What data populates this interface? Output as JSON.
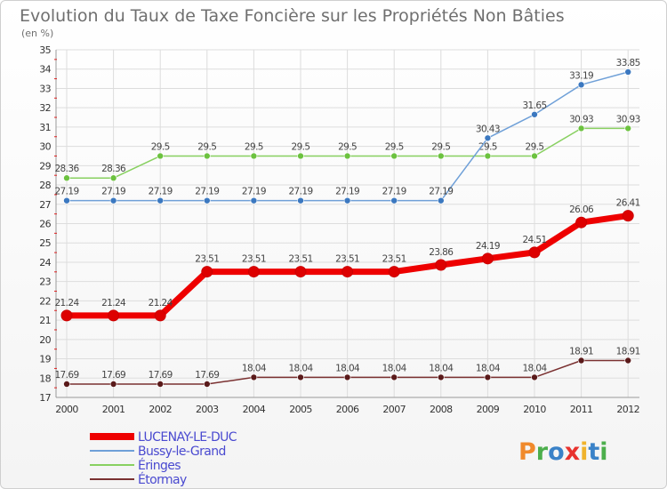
{
  "chart_data": {
    "type": "line",
    "title": "Evolution du Taux de Taxe Foncière sur les Propriétés Non Bâties",
    "subtitle": "(en %)",
    "xlabel": "",
    "ylabel": "",
    "ylim": [
      17,
      35
    ],
    "grid": true,
    "categories": [
      "2000",
      "2001",
      "2002",
      "2003",
      "2004",
      "2005",
      "2006",
      "2007",
      "2008",
      "2009",
      "2010",
      "2011",
      "2012"
    ],
    "series": [
      {
        "name": "LUCENAY-LE-DUC",
        "color": "#ee0000",
        "marker": "#dd0000",
        "width": 7,
        "r": 6,
        "values": [
          21.24,
          21.24,
          21.24,
          23.51,
          23.51,
          23.51,
          23.51,
          23.51,
          23.86,
          24.19,
          24.51,
          26.06,
          26.41
        ],
        "labels": [
          "21.24",
          "21.24",
          "21.24",
          "23.51",
          "23.51",
          "23.51",
          "23.51",
          "23.51",
          "23.86",
          "24.19",
          "24.51",
          "26.06",
          "26.41"
        ]
      },
      {
        "name": "Bussy-le-Grand",
        "color": "#6fa0d8",
        "marker": "#3b78c0",
        "width": 1.5,
        "r": 3.5,
        "values": [
          27.19,
          27.19,
          27.19,
          27.19,
          27.19,
          27.19,
          27.19,
          27.19,
          27.19,
          30.43,
          31.65,
          33.19,
          33.85
        ],
        "labels": [
          "27.19",
          "27.19",
          "27.19",
          "27.19",
          "27.19",
          "27.19",
          "27.19",
          "27.19",
          "27.19",
          "30.43",
          "31.65",
          "33.19",
          "33.85"
        ]
      },
      {
        "name": "Éringes",
        "color": "#88d060",
        "marker": "#6cc23f",
        "width": 1.5,
        "r": 3.5,
        "values": [
          28.36,
          28.36,
          29.5,
          29.5,
          29.5,
          29.5,
          29.5,
          29.5,
          29.5,
          29.5,
          29.5,
          30.93,
          30.93
        ],
        "labels": [
          "28.36",
          "28.36",
          "29.5",
          "29.5",
          "29.5",
          "29.5",
          "29.5",
          "29.5",
          "29.5",
          "29.5",
          "29.5",
          "30.93",
          "30.93"
        ]
      },
      {
        "name": "Étormay",
        "color": "#7a3030",
        "marker": "#5a1a1a",
        "width": 1.5,
        "r": 3.5,
        "values": [
          17.69,
          17.69,
          17.69,
          17.69,
          18.04,
          18.04,
          18.04,
          18.04,
          18.04,
          18.04,
          18.04,
          18.91,
          18.91
        ],
        "labels": [
          "17.69",
          "17.69",
          "17.69",
          "17.69",
          "18.04",
          "18.04",
          "18.04",
          "18.04",
          "18.04",
          "18.04",
          "18.04",
          "18.91",
          "18.91"
        ]
      }
    ]
  },
  "logo": {
    "text": "Proxiti",
    "colors": [
      "#f08a2c",
      "#4cae4c",
      "#3a82c8",
      "#e8322e",
      "#f0b32c",
      "#3a82c8",
      "#4cae4c"
    ]
  }
}
